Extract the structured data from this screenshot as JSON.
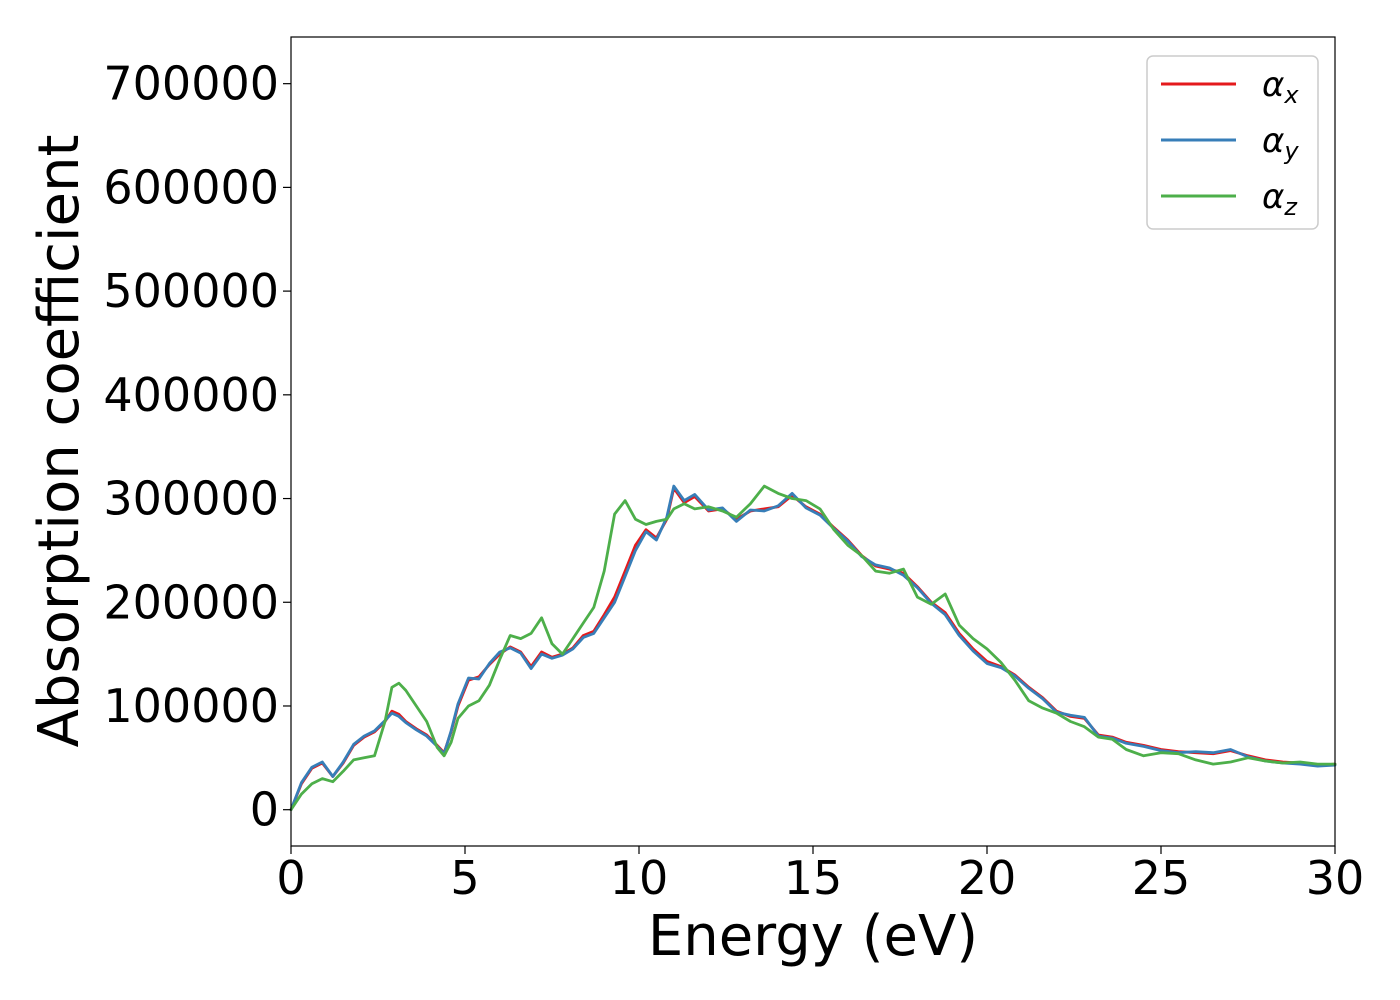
{
  "chart_data": {
    "type": "line",
    "xlabel": "Energy (eV)",
    "ylabel": "Absorption coefficient",
    "xlim": [
      0,
      30
    ],
    "ylim": [
      -35000,
      745000
    ],
    "xticks": [
      0,
      5,
      10,
      15,
      20,
      25,
      30
    ],
    "yticks": [
      0,
      100000,
      200000,
      300000,
      400000,
      500000,
      600000,
      700000
    ],
    "legend_position": "top-right",
    "grid": false,
    "series": [
      {
        "name": "αx",
        "base": "α",
        "sub": "x",
        "color": "#e41a1c",
        "x": [
          0,
          0.3,
          0.6,
          0.9,
          1.2,
          1.5,
          1.8,
          2.1,
          2.4,
          2.7,
          2.9,
          3.1,
          3.3,
          3.6,
          3.9,
          4.2,
          4.4,
          4.6,
          4.8,
          5.1,
          5.4,
          5.7,
          6.0,
          6.3,
          6.6,
          6.9,
          7.2,
          7.5,
          7.8,
          8.1,
          8.4,
          8.7,
          9.0,
          9.3,
          9.6,
          9.9,
          10.2,
          10.5,
          10.8,
          11.0,
          11.3,
          11.6,
          12.0,
          12.4,
          12.8,
          13.2,
          13.6,
          14.0,
          14.4,
          14.8,
          15.2,
          15.6,
          16.0,
          16.4,
          16.8,
          17.2,
          17.6,
          18.0,
          18.4,
          18.8,
          19.2,
          19.6,
          20.0,
          20.4,
          20.8,
          21.2,
          21.6,
          22.0,
          22.4,
          22.8,
          23.2,
          23.6,
          24.0,
          24.5,
          25.0,
          25.5,
          26.0,
          26.5,
          27.0,
          27.5,
          28.0,
          28.5,
          29.0,
          29.5,
          30.0
        ],
        "y": [
          0,
          25000,
          40000,
          45000,
          32000,
          45000,
          62000,
          70000,
          75000,
          85000,
          95000,
          92000,
          85000,
          78000,
          72000,
          62000,
          55000,
          75000,
          100000,
          125000,
          128000,
          140000,
          150000,
          157000,
          152000,
          138000,
          152000,
          147000,
          150000,
          156000,
          168000,
          172000,
          188000,
          205000,
          230000,
          255000,
          270000,
          262000,
          280000,
          310000,
          296000,
          302000,
          288000,
          290000,
          280000,
          288000,
          290000,
          292000,
          303000,
          292000,
          285000,
          272000,
          260000,
          245000,
          235000,
          232000,
          228000,
          215000,
          200000,
          190000,
          170000,
          155000,
          143000,
          138000,
          130000,
          118000,
          108000,
          95000,
          90000,
          88000,
          72000,
          70000,
          65000,
          62000,
          58000,
          56000,
          55000,
          54000,
          57000,
          52000,
          48000,
          46000,
          45000,
          43000,
          44000
        ]
      },
      {
        "name": "αy",
        "base": "α",
        "sub": "y",
        "color": "#377eb8",
        "x": [
          0,
          0.3,
          0.6,
          0.9,
          1.2,
          1.5,
          1.8,
          2.1,
          2.4,
          2.7,
          2.9,
          3.1,
          3.3,
          3.6,
          3.9,
          4.2,
          4.4,
          4.6,
          4.8,
          5.1,
          5.4,
          5.7,
          6.0,
          6.3,
          6.6,
          6.9,
          7.2,
          7.5,
          7.8,
          8.1,
          8.4,
          8.7,
          9.0,
          9.3,
          9.6,
          9.9,
          10.2,
          10.5,
          10.8,
          11.0,
          11.3,
          11.6,
          12.0,
          12.4,
          12.8,
          13.2,
          13.6,
          14.0,
          14.4,
          14.8,
          15.2,
          15.6,
          16.0,
          16.4,
          16.8,
          17.2,
          17.6,
          18.0,
          18.4,
          18.8,
          19.2,
          19.6,
          20.0,
          20.4,
          20.8,
          21.2,
          21.6,
          22.0,
          22.4,
          22.8,
          23.2,
          23.6,
          24.0,
          24.5,
          25.0,
          25.5,
          26.0,
          26.5,
          27.0,
          27.5,
          28.0,
          28.5,
          29.0,
          29.5,
          30.0
        ],
        "y": [
          0,
          26000,
          41000,
          46000,
          32000,
          46000,
          63000,
          71000,
          76000,
          86000,
          93000,
          90000,
          84000,
          77000,
          71000,
          61000,
          54000,
          76000,
          102000,
          127000,
          126000,
          141000,
          152000,
          156000,
          151000,
          136000,
          150000,
          146000,
          149000,
          155000,
          166000,
          170000,
          185000,
          200000,
          225000,
          250000,
          268000,
          260000,
          282000,
          312000,
          298000,
          304000,
          289000,
          291000,
          278000,
          289000,
          288000,
          293000,
          305000,
          291000,
          284000,
          271000,
          259000,
          244000,
          236000,
          233000,
          226000,
          214000,
          199000,
          188000,
          168000,
          153000,
          141000,
          137000,
          129000,
          117000,
          107000,
          94000,
          91000,
          89000,
          71000,
          69000,
          64000,
          61000,
          57000,
          55000,
          56000,
          55000,
          58000,
          51000,
          47000,
          45000,
          44000,
          42000,
          43000
        ]
      },
      {
        "name": "αz",
        "base": "α",
        "sub": "z",
        "color": "#4daf4a",
        "x": [
          0,
          0.3,
          0.6,
          0.9,
          1.2,
          1.5,
          1.8,
          2.1,
          2.4,
          2.7,
          2.9,
          3.1,
          3.3,
          3.6,
          3.9,
          4.2,
          4.4,
          4.6,
          4.8,
          5.1,
          5.4,
          5.7,
          6.0,
          6.3,
          6.6,
          6.9,
          7.2,
          7.5,
          7.8,
          8.1,
          8.4,
          8.7,
          9.0,
          9.3,
          9.6,
          9.9,
          10.2,
          10.5,
          10.8,
          11.0,
          11.3,
          11.6,
          12.0,
          12.4,
          12.8,
          13.2,
          13.6,
          14.0,
          14.4,
          14.8,
          15.2,
          15.6,
          16.0,
          16.4,
          16.8,
          17.2,
          17.6,
          18.0,
          18.4,
          18.8,
          19.2,
          19.6,
          20.0,
          20.4,
          20.8,
          21.2,
          21.6,
          22.0,
          22.4,
          22.8,
          23.2,
          23.6,
          24.0,
          24.5,
          25.0,
          25.5,
          26.0,
          26.5,
          27.0,
          27.5,
          28.0,
          28.5,
          29.0,
          29.5,
          30.0
        ],
        "y": [
          0,
          15000,
          25000,
          30000,
          27000,
          37000,
          48000,
          50000,
          52000,
          85000,
          118000,
          122000,
          115000,
          100000,
          85000,
          60000,
          52000,
          65000,
          88000,
          100000,
          105000,
          120000,
          145000,
          168000,
          165000,
          170000,
          185000,
          160000,
          150000,
          165000,
          180000,
          195000,
          230000,
          285000,
          298000,
          280000,
          275000,
          278000,
          280000,
          290000,
          295000,
          290000,
          292000,
          288000,
          282000,
          295000,
          312000,
          305000,
          300000,
          298000,
          290000,
          270000,
          255000,
          245000,
          230000,
          228000,
          232000,
          205000,
          198000,
          208000,
          178000,
          165000,
          155000,
          142000,
          125000,
          105000,
          98000,
          93000,
          85000,
          80000,
          70000,
          68000,
          58000,
          52000,
          55000,
          54000,
          48000,
          44000,
          46000,
          50000,
          47000,
          45000,
          46000,
          44000,
          44000
        ]
      }
    ]
  }
}
